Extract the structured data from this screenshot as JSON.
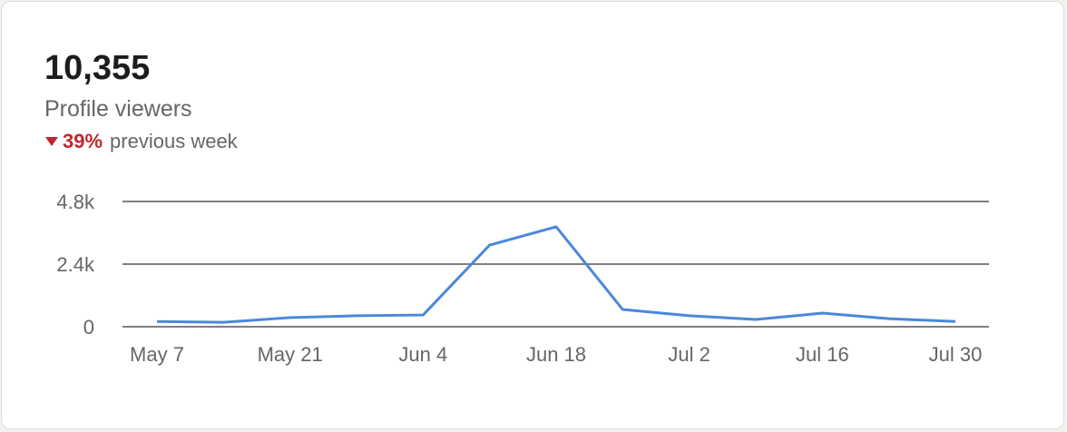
{
  "header": {
    "total": "10,355",
    "metric": "Profile viewers",
    "change": "39%",
    "comparison": "previous week"
  },
  "chart_data": {
    "type": "line",
    "categories": [
      "May 7",
      null,
      "May 21",
      null,
      "Jun 4",
      null,
      "Jun 18",
      null,
      "Jul 2",
      null,
      "Jul 16",
      null,
      "Jul 30"
    ],
    "series": [
      {
        "color": "#4a88db",
        "values": [
          200,
          170,
          350,
          420,
          450,
          3130,
          3830,
          660,
          420,
          280,
          520,
          310,
          200
        ]
      }
    ],
    "ylim": [
      0,
      4800
    ],
    "yticks": [
      0,
      {
        "value": 2400,
        "label": "2.4k"
      },
      {
        "value": 4800,
        "label": "4.8k"
      }
    ],
    "grid": true
  }
}
